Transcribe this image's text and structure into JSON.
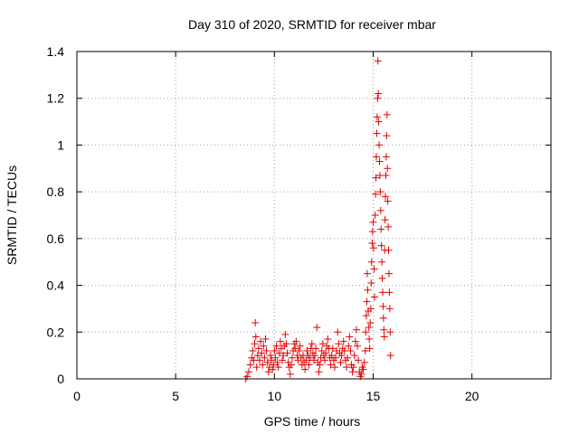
{
  "chart_data": {
    "type": "scatter",
    "title": "Day 310 of 2020, SRMTID for receiver mbar",
    "xlabel": "GPS time / hours",
    "ylabel": "SRMTID / TECUs",
    "xlim": [
      0,
      24
    ],
    "ylim": [
      0,
      1.4
    ],
    "xticks": [
      0,
      5,
      10,
      15,
      20
    ],
    "yticks": [
      0,
      0.2,
      0.4,
      0.6,
      0.8,
      1,
      1.2,
      1.4
    ],
    "xtick_labels": [
      "0",
      "5",
      "10",
      "15",
      "20"
    ],
    "ytick_labels": [
      "0",
      "0.2",
      "0.4",
      "0.6",
      "0.8",
      "1",
      "1.2",
      "1.4"
    ],
    "grid": true,
    "marker": "+",
    "color": "#e00000",
    "series": [
      {
        "name": "SRMTID",
        "points": [
          [
            8.55,
            0.0
          ],
          [
            8.62,
            0.01
          ],
          [
            8.7,
            0.03
          ],
          [
            8.78,
            0.06
          ],
          [
            8.85,
            0.09
          ],
          [
            8.9,
            0.12
          ],
          [
            8.95,
            0.08
          ],
          [
            9.0,
            0.15
          ],
          [
            9.03,
            0.24
          ],
          [
            9.06,
            0.18
          ],
          [
            9.1,
            0.05
          ],
          [
            9.15,
            0.1
          ],
          [
            9.2,
            0.13
          ],
          [
            9.25,
            0.08
          ],
          [
            9.3,
            0.16
          ],
          [
            9.35,
            0.11
          ],
          [
            9.4,
            0.06
          ],
          [
            9.45,
            0.14
          ],
          [
            9.5,
            0.09
          ],
          [
            9.55,
            0.17
          ],
          [
            9.6,
            0.12
          ],
          [
            9.65,
            0.07
          ],
          [
            9.7,
            0.03
          ],
          [
            9.75,
            0.05
          ],
          [
            9.8,
            0.1
          ],
          [
            9.85,
            0.08
          ],
          [
            9.9,
            0.04
          ],
          [
            9.95,
            0.06
          ],
          [
            10.0,
            0.12
          ],
          [
            10.05,
            0.09
          ],
          [
            10.1,
            0.14
          ],
          [
            10.15,
            0.07
          ],
          [
            10.2,
            0.05
          ],
          [
            10.25,
            0.11
          ],
          [
            10.3,
            0.16
          ],
          [
            10.35,
            0.13
          ],
          [
            10.4,
            0.08
          ],
          [
            10.45,
            0.1
          ],
          [
            10.5,
            0.14
          ],
          [
            10.55,
            0.19
          ],
          [
            10.6,
            0.15
          ],
          [
            10.65,
            0.11
          ],
          [
            10.7,
            0.07
          ],
          [
            10.75,
            0.05
          ],
          [
            10.8,
            0.02
          ],
          [
            10.85,
            0.06
          ],
          [
            10.9,
            0.09
          ],
          [
            10.95,
            0.12
          ],
          [
            11.0,
            0.15
          ],
          [
            11.05,
            0.13
          ],
          [
            11.1,
            0.16
          ],
          [
            11.15,
            0.1
          ],
          [
            11.2,
            0.08
          ],
          [
            11.25,
            0.12
          ],
          [
            11.3,
            0.14
          ],
          [
            11.35,
            0.09
          ],
          [
            11.4,
            0.06
          ],
          [
            11.45,
            0.1
          ],
          [
            11.5,
            0.07
          ],
          [
            11.55,
            0.04
          ],
          [
            11.6,
            0.08
          ],
          [
            11.65,
            0.12
          ],
          [
            11.7,
            0.1
          ],
          [
            11.75,
            0.06
          ],
          [
            11.8,
            0.09
          ],
          [
            11.85,
            0.13
          ],
          [
            11.9,
            0.15
          ],
          [
            11.95,
            0.11
          ],
          [
            12.0,
            0.08
          ],
          [
            12.05,
            0.1
          ],
          [
            12.1,
            0.13
          ],
          [
            12.15,
            0.22
          ],
          [
            12.2,
            0.07
          ],
          [
            12.25,
            0.03
          ],
          [
            12.3,
            0.06
          ],
          [
            12.35,
            0.09
          ],
          [
            12.4,
            0.12
          ],
          [
            12.45,
            0.15
          ],
          [
            12.5,
            0.1
          ],
          [
            12.55,
            0.08
          ],
          [
            12.6,
            0.11
          ],
          [
            12.65,
            0.14
          ],
          [
            12.7,
            0.17
          ],
          [
            12.75,
            0.13
          ],
          [
            12.8,
            0.09
          ],
          [
            12.85,
            0.06
          ],
          [
            12.9,
            0.1
          ],
          [
            12.95,
            0.13
          ],
          [
            13.0,
            0.08
          ],
          [
            13.05,
            0.05
          ],
          [
            13.1,
            0.09
          ],
          [
            13.15,
            0.12
          ],
          [
            13.2,
            0.2
          ],
          [
            13.25,
            0.15
          ],
          [
            13.3,
            0.11
          ],
          [
            13.35,
            0.07
          ],
          [
            13.4,
            0.1
          ],
          [
            13.45,
            0.13
          ],
          [
            13.5,
            0.16
          ],
          [
            13.55,
            0.12
          ],
          [
            13.6,
            0.08
          ],
          [
            13.65,
            0.05
          ],
          [
            13.7,
            0.09
          ],
          [
            13.75,
            0.14
          ],
          [
            13.8,
            0.18
          ],
          [
            13.85,
            0.12
          ],
          [
            13.9,
            0.06
          ],
          [
            13.95,
            0.03
          ],
          [
            14.0,
            0.05
          ],
          [
            14.05,
            0.1
          ],
          [
            14.1,
            0.16
          ],
          [
            14.15,
            0.21
          ],
          [
            14.2,
            0.14
          ],
          [
            14.25,
            0.08
          ],
          [
            14.3,
            0.03
          ],
          [
            14.35,
            0.01
          ],
          [
            14.4,
            0.02
          ],
          [
            14.45,
            0.05
          ],
          [
            14.5,
            0.04
          ],
          [
            14.55,
            0.07
          ],
          [
            14.6,
            0.12
          ],
          [
            14.62,
            0.2
          ],
          [
            14.65,
            0.27
          ],
          [
            14.68,
            0.33
          ],
          [
            14.7,
            0.45
          ],
          [
            14.72,
            0.38
          ],
          [
            14.75,
            0.29
          ],
          [
            14.78,
            0.22
          ],
          [
            14.8,
            0.17
          ],
          [
            14.82,
            0.13
          ],
          [
            14.85,
            0.24
          ],
          [
            14.88,
            0.3
          ],
          [
            14.9,
            0.41
          ],
          [
            14.92,
            0.5
          ],
          [
            14.95,
            0.58
          ],
          [
            14.97,
            0.63
          ],
          [
            15.0,
            0.67
          ],
          [
            15.02,
            0.56
          ],
          [
            15.05,
            0.47
          ],
          [
            15.07,
            0.35
          ],
          [
            15.1,
            0.7
          ],
          [
            15.12,
            0.79
          ],
          [
            15.14,
            0.86
          ],
          [
            15.16,
            0.95
          ],
          [
            15.18,
            1.05
          ],
          [
            15.2,
            1.12
          ],
          [
            15.22,
            1.2
          ],
          [
            15.24,
            1.36
          ],
          [
            15.26,
            1.22
          ],
          [
            15.28,
            1.1
          ],
          [
            15.3,
            1.0
          ],
          [
            15.32,
            0.93
          ],
          [
            15.34,
            0.87
          ],
          [
            15.36,
            0.8
          ],
          [
            15.38,
            0.72
          ],
          [
            15.4,
            0.64
          ],
          [
            15.42,
            0.57
          ],
          [
            15.44,
            0.5
          ],
          [
            15.46,
            0.43
          ],
          [
            15.48,
            0.37
          ],
          [
            15.5,
            0.31
          ],
          [
            15.52,
            0.26
          ],
          [
            15.54,
            0.21
          ],
          [
            15.56,
            0.18
          ],
          [
            15.58,
            0.55
          ],
          [
            15.6,
            0.68
          ],
          [
            15.62,
            0.78
          ],
          [
            15.64,
            0.87
          ],
          [
            15.66,
            0.95
          ],
          [
            15.68,
            1.04
          ],
          [
            15.7,
            1.13
          ],
          [
            15.72,
            0.9
          ],
          [
            15.74,
            0.76
          ],
          [
            15.76,
            0.65
          ],
          [
            15.78,
            0.55
          ],
          [
            15.8,
            0.45
          ],
          [
            15.82,
            0.37
          ],
          [
            15.84,
            0.3
          ],
          [
            15.86,
            0.2
          ],
          [
            15.88,
            0.1
          ]
        ]
      }
    ]
  }
}
